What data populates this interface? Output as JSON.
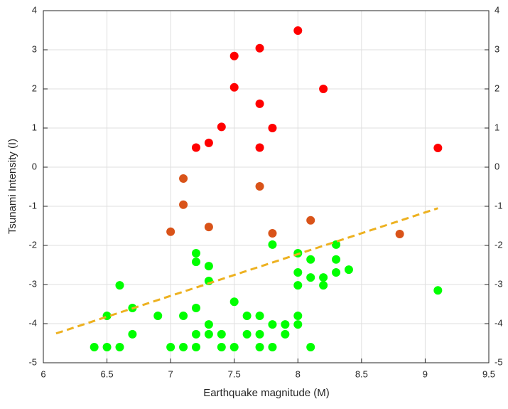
{
  "chart_data": {
    "type": "scatter",
    "xlabel": "Earthquake magnitude (M)",
    "ylabel": "Tsunami Intensity (I)",
    "xlim": [
      6,
      9.5
    ],
    "xticks": [
      6,
      6.5,
      7,
      7.5,
      8,
      8.5,
      9,
      9.5
    ],
    "ylim": [
      -5,
      4
    ],
    "yticks": [
      -5,
      -4,
      -3,
      -2,
      -1,
      0,
      1,
      2,
      3,
      4
    ],
    "y2lim": [
      -5,
      4
    ],
    "y2ticks": [
      -5,
      -4,
      -3,
      -2,
      -1,
      0,
      1,
      2,
      3,
      4
    ],
    "grid": true,
    "series": [
      {
        "color": "#ff0000",
        "x": [
          7.2,
          7.3,
          7.4,
          7.5,
          7.5,
          7.7,
          7.7,
          7.7,
          7.8,
          8.0,
          8.2,
          9.1
        ],
        "values": [
          0.5,
          0.62,
          1.03,
          2.84,
          2.04,
          3.04,
          1.62,
          0.5,
          1.0,
          3.49,
          2.0,
          0.49
        ]
      },
      {
        "color": "#d95319",
        "x": [
          7.1,
          7.1,
          7.0,
          7.3,
          7.7,
          7.8,
          8.1,
          8.8
        ],
        "values": [
          -0.29,
          -0.96,
          -1.65,
          -1.53,
          -0.49,
          -1.69,
          -1.36,
          -1.71
        ]
      },
      {
        "color": "#00ff00",
        "x": [
          6.4,
          6.5,
          6.6,
          6.5,
          6.6,
          6.7,
          6.7,
          6.9,
          7.0,
          7.1,
          7.1,
          7.2,
          7.2,
          7.2,
          7.2,
          7.2,
          7.3,
          7.3,
          7.3,
          7.3,
          7.4,
          7.4,
          7.5,
          7.5,
          7.6,
          7.6,
          7.7,
          7.7,
          7.7,
          7.8,
          7.8,
          7.8,
          7.9,
          7.9,
          8.0,
          8.0,
          8.0,
          8.0,
          8.0,
          8.1,
          8.1,
          8.1,
          8.2,
          8.2,
          8.3,
          8.3,
          8.3,
          8.4,
          9.1
        ],
        "values": [
          -4.6,
          -4.6,
          -4.6,
          -3.8,
          -3.02,
          -3.6,
          -4.27,
          -3.8,
          -4.6,
          -4.6,
          -3.8,
          -2.2,
          -2.42,
          -3.6,
          -4.27,
          -4.6,
          -2.53,
          -2.91,
          -4.02,
          -4.27,
          -4.27,
          -4.6,
          -3.44,
          -4.6,
          -3.8,
          -4.27,
          -3.8,
          -4.27,
          -4.6,
          -1.98,
          -4.02,
          -4.6,
          -4.02,
          -4.27,
          -2.2,
          -2.69,
          -3.02,
          -3.8,
          -4.02,
          -2.36,
          -2.82,
          -4.6,
          -2.82,
          -3.02,
          -1.98,
          -2.36,
          -2.69,
          -2.62,
          -3.15
        ]
      }
    ],
    "trend_line": {
      "color": "#edb120",
      "style": "dashed",
      "x": [
        6.1,
        9.1
      ],
      "values": [
        -4.25,
        -1.05
      ]
    }
  }
}
